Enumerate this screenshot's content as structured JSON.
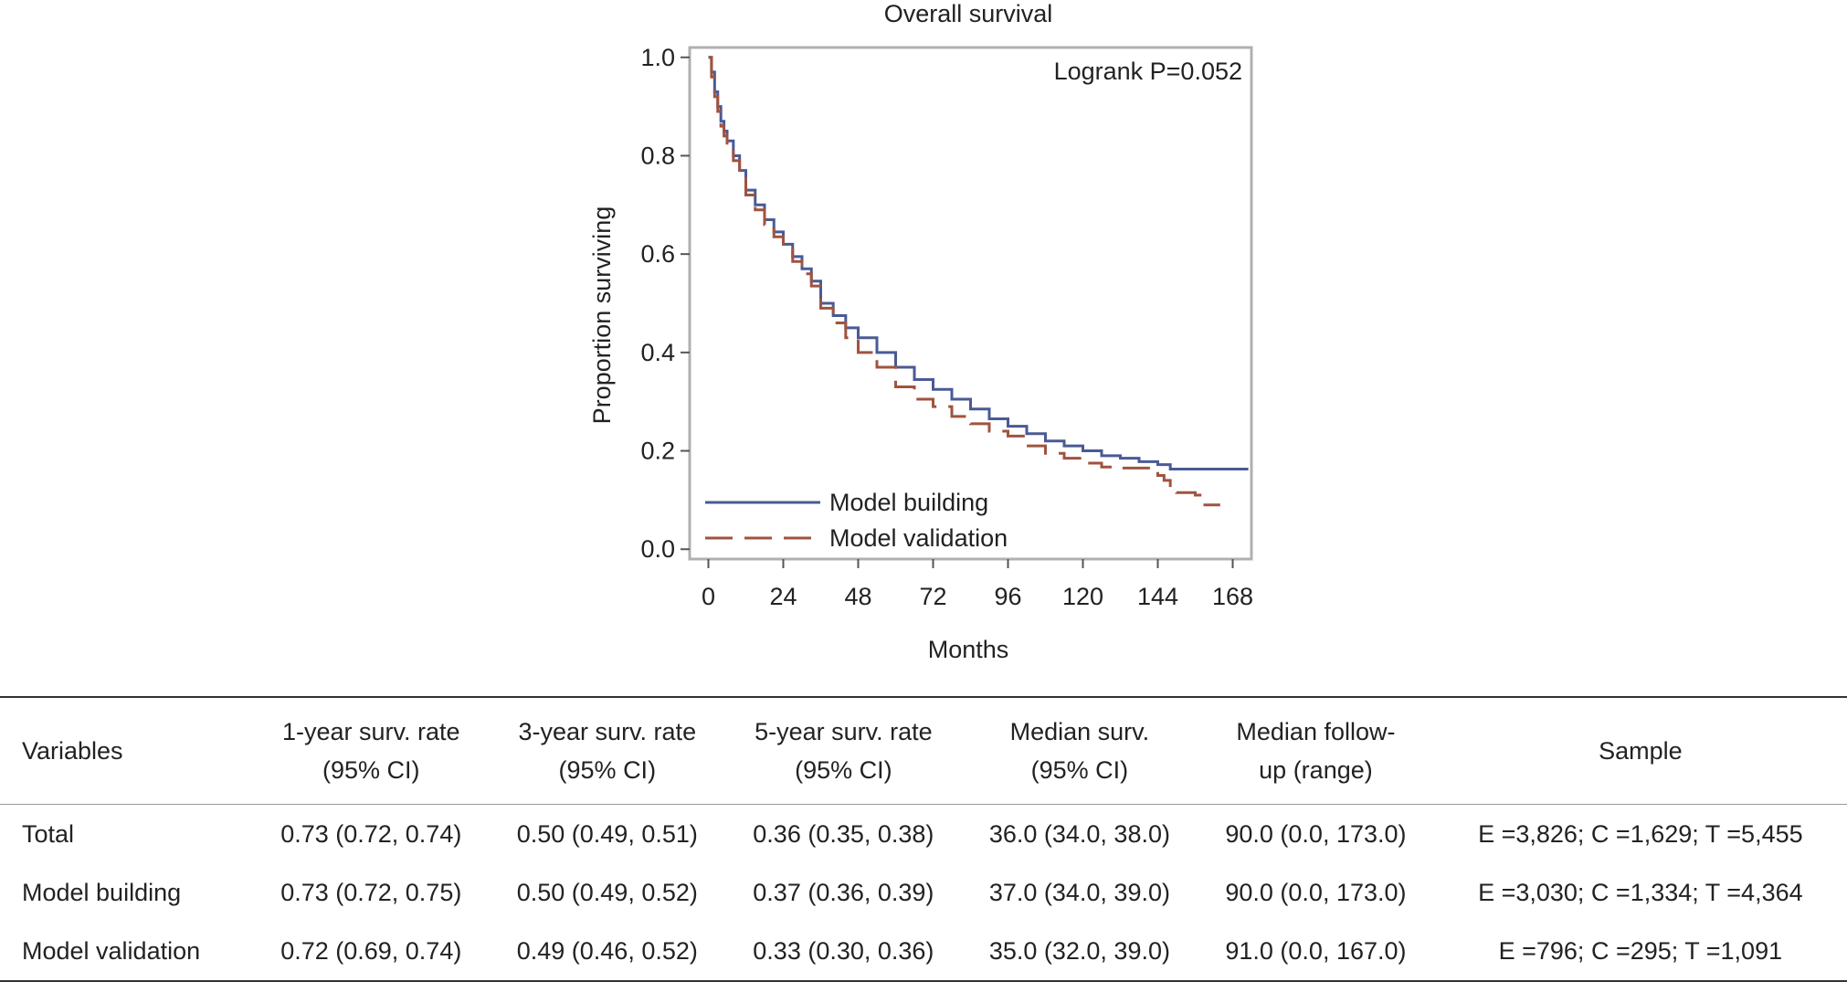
{
  "chart_data": {
    "type": "line",
    "title": "Overall survival",
    "xlabel": "Months",
    "ylabel": "Proportion surviving",
    "xlim": [
      -6,
      174
    ],
    "ylim": [
      -0.02,
      1.02
    ],
    "x_ticks": [
      "0",
      "24",
      "48",
      "72",
      "96",
      "120",
      "144",
      "168"
    ],
    "y_ticks": [
      "0.0",
      "0.2",
      "0.4",
      "0.6",
      "0.8",
      "1.0"
    ],
    "annotation": "Logrank P=0.052",
    "legend_position": "bottom-left",
    "grid": false,
    "series": [
      {
        "name": "Model building",
        "color": "#4a5a96",
        "style": "solid",
        "points": [
          [
            0,
            1.0
          ],
          [
            1,
            0.97
          ],
          [
            2,
            0.93
          ],
          [
            3,
            0.9
          ],
          [
            4,
            0.87
          ],
          [
            5,
            0.85
          ],
          [
            6,
            0.83
          ],
          [
            8,
            0.8
          ],
          [
            10,
            0.77
          ],
          [
            12,
            0.73
          ],
          [
            15,
            0.7
          ],
          [
            18,
            0.67
          ],
          [
            21,
            0.645
          ],
          [
            24,
            0.62
          ],
          [
            27,
            0.595
          ],
          [
            30,
            0.57
          ],
          [
            33,
            0.545
          ],
          [
            36,
            0.5
          ],
          [
            40,
            0.475
          ],
          [
            44,
            0.45
          ],
          [
            48,
            0.43
          ],
          [
            54,
            0.4
          ],
          [
            60,
            0.37
          ],
          [
            66,
            0.345
          ],
          [
            72,
            0.325
          ],
          [
            78,
            0.305
          ],
          [
            84,
            0.285
          ],
          [
            90,
            0.265
          ],
          [
            96,
            0.25
          ],
          [
            102,
            0.235
          ],
          [
            108,
            0.22
          ],
          [
            114,
            0.21
          ],
          [
            120,
            0.2
          ],
          [
            126,
            0.19
          ],
          [
            132,
            0.185
          ],
          [
            138,
            0.178
          ],
          [
            144,
            0.172
          ],
          [
            148,
            0.163
          ],
          [
            162,
            0.163
          ],
          [
            173,
            0.163
          ]
        ]
      },
      {
        "name": "Model validation",
        "color": "#a0533f",
        "style": "dashed",
        "points": [
          [
            0,
            1.0
          ],
          [
            1,
            0.96
          ],
          [
            2,
            0.92
          ],
          [
            3,
            0.89
          ],
          [
            4,
            0.86
          ],
          [
            5,
            0.84
          ],
          [
            6,
            0.82
          ],
          [
            8,
            0.79
          ],
          [
            10,
            0.76
          ],
          [
            12,
            0.72
          ],
          [
            15,
            0.69
          ],
          [
            18,
            0.66
          ],
          [
            21,
            0.635
          ],
          [
            24,
            0.61
          ],
          [
            27,
            0.585
          ],
          [
            30,
            0.56
          ],
          [
            33,
            0.535
          ],
          [
            36,
            0.49
          ],
          [
            40,
            0.46
          ],
          [
            44,
            0.43
          ],
          [
            48,
            0.4
          ],
          [
            54,
            0.37
          ],
          [
            60,
            0.33
          ],
          [
            66,
            0.305
          ],
          [
            72,
            0.29
          ],
          [
            78,
            0.27
          ],
          [
            84,
            0.255
          ],
          [
            90,
            0.24
          ],
          [
            96,
            0.23
          ],
          [
            102,
            0.21
          ],
          [
            108,
            0.195
          ],
          [
            114,
            0.185
          ],
          [
            120,
            0.175
          ],
          [
            126,
            0.167
          ],
          [
            132,
            0.165
          ],
          [
            138,
            0.165
          ],
          [
            142,
            0.165
          ],
          [
            144,
            0.15
          ],
          [
            146,
            0.14
          ],
          [
            148,
            0.125
          ],
          [
            150,
            0.115
          ],
          [
            156,
            0.11
          ],
          [
            158,
            0.09
          ],
          [
            164,
            0.09
          ]
        ]
      }
    ]
  },
  "table": {
    "headers": [
      [
        "Variables"
      ],
      [
        "1-year surv. rate",
        "(95% CI)"
      ],
      [
        "3-year surv. rate",
        "(95% CI)"
      ],
      [
        "5-year surv. rate",
        "(95% CI)"
      ],
      [
        "Median surv.",
        "(95% CI)"
      ],
      [
        "Median follow-",
        "up (range)"
      ],
      [
        "Sample"
      ]
    ],
    "rows": [
      [
        "Total",
        "0.73 (0.72, 0.74)",
        "0.50 (0.49, 0.51)",
        "0.36 (0.35, 0.38)",
        "36.0 (34.0, 38.0)",
        "90.0 (0.0, 173.0)",
        "E =3,826; C =1,629; T =5,455"
      ],
      [
        "Model building",
        "0.73 (0.72, 0.75)",
        "0.50 (0.49, 0.52)",
        "0.37 (0.36, 0.39)",
        "37.0 (34.0, 39.0)",
        "90.0 (0.0, 173.0)",
        "E =3,030; C =1,334; T =4,364"
      ],
      [
        "Model validation",
        "0.72 (0.69, 0.74)",
        "0.49 (0.46, 0.52)",
        "0.33 (0.30, 0.36)",
        "35.0 (32.0, 39.0)",
        "91.0 (0.0, 167.0)",
        "E =796; C =295; T =1,091"
      ]
    ]
  }
}
